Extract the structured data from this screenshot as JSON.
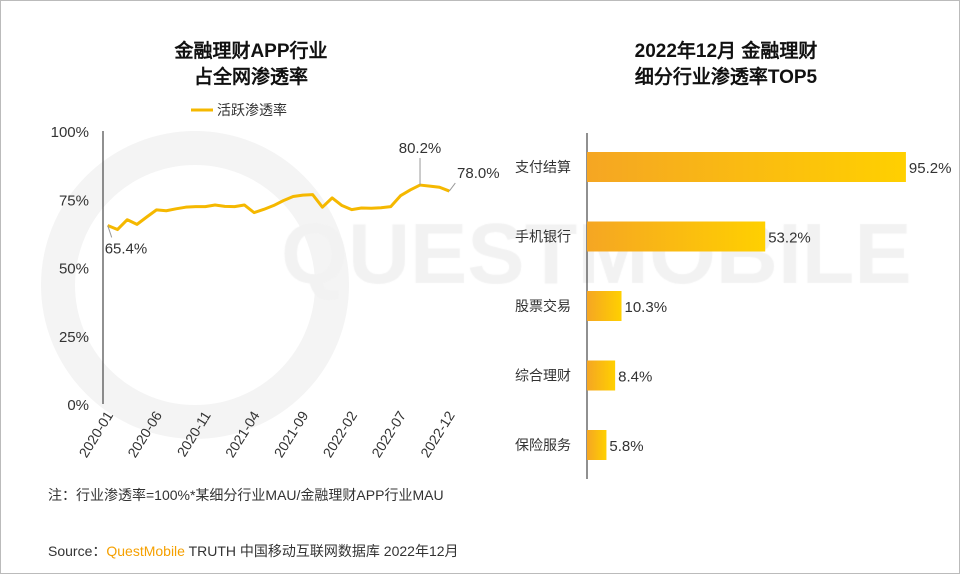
{
  "chart_data": [
    {
      "type": "line",
      "title": "金融理财APP行业\n占全网渗透率",
      "title_lines": [
        "金融理财APP行业",
        "占全网渗透率"
      ],
      "legend": "top-center",
      "series": [
        {
          "name": "活跃渗透率",
          "color": "#f5b800",
          "values": [
            65.4,
            63.9,
            67.5,
            65.8,
            68.5,
            71.1,
            70.8,
            71.5,
            72.1,
            72.3,
            72.3,
            72.9,
            72.4,
            72.3,
            72.9,
            70.1,
            71.3,
            72.7,
            74.5,
            76.0,
            76.5,
            76.7,
            72.1,
            75.5,
            72.7,
            71.2,
            71.8,
            71.7,
            71.9,
            72.3,
            76.3,
            78.4,
            80.2,
            79.8,
            79.4,
            78.0
          ]
        }
      ],
      "x_start": "2020-01",
      "x_end": "2022-12",
      "xtick_labels": [
        "2020-01",
        "2020-06",
        "2020-11",
        "2021-04",
        "2021-09",
        "2022-02",
        "2022-07",
        "2022-12"
      ],
      "ytick_labels": [
        "100%",
        "75%",
        "50%",
        "25%",
        "0%"
      ],
      "ylim": [
        0,
        100
      ],
      "data_labels": [
        {
          "index": 0,
          "text": "65.4%"
        },
        {
          "index": 32,
          "text": "80.2%"
        },
        {
          "index": 35,
          "text": "78.0%"
        }
      ],
      "grid": false
    },
    {
      "type": "bar",
      "orientation": "horizontal",
      "title": "2022年12月 金融理财\n细分行业渗透率TOP5",
      "title_lines": [
        "2022年12月 金融理财",
        "细分行业渗透率TOP5"
      ],
      "categories": [
        "支付结算",
        "手机银行",
        "股票交易",
        "综合理财",
        "保险服务"
      ],
      "values": [
        95.2,
        53.2,
        10.3,
        8.4,
        5.8
      ],
      "value_labels": [
        "95.2%",
        "53.2%",
        "10.3%",
        "8.4%",
        "5.8%"
      ],
      "colors": [
        "#f5a623",
        "#ffd000"
      ]
    }
  ],
  "note": "注：行业渗透率=100%*某细分行业MAU/金融理财APP行业MAU",
  "source": {
    "prefix": "Source：",
    "brand": "QuestMobile",
    "rest": " TRUTH 中国移动互联网数据库 2022年12月",
    "brand_color": "#f5a000"
  },
  "watermark": "QUESTMOBILE"
}
